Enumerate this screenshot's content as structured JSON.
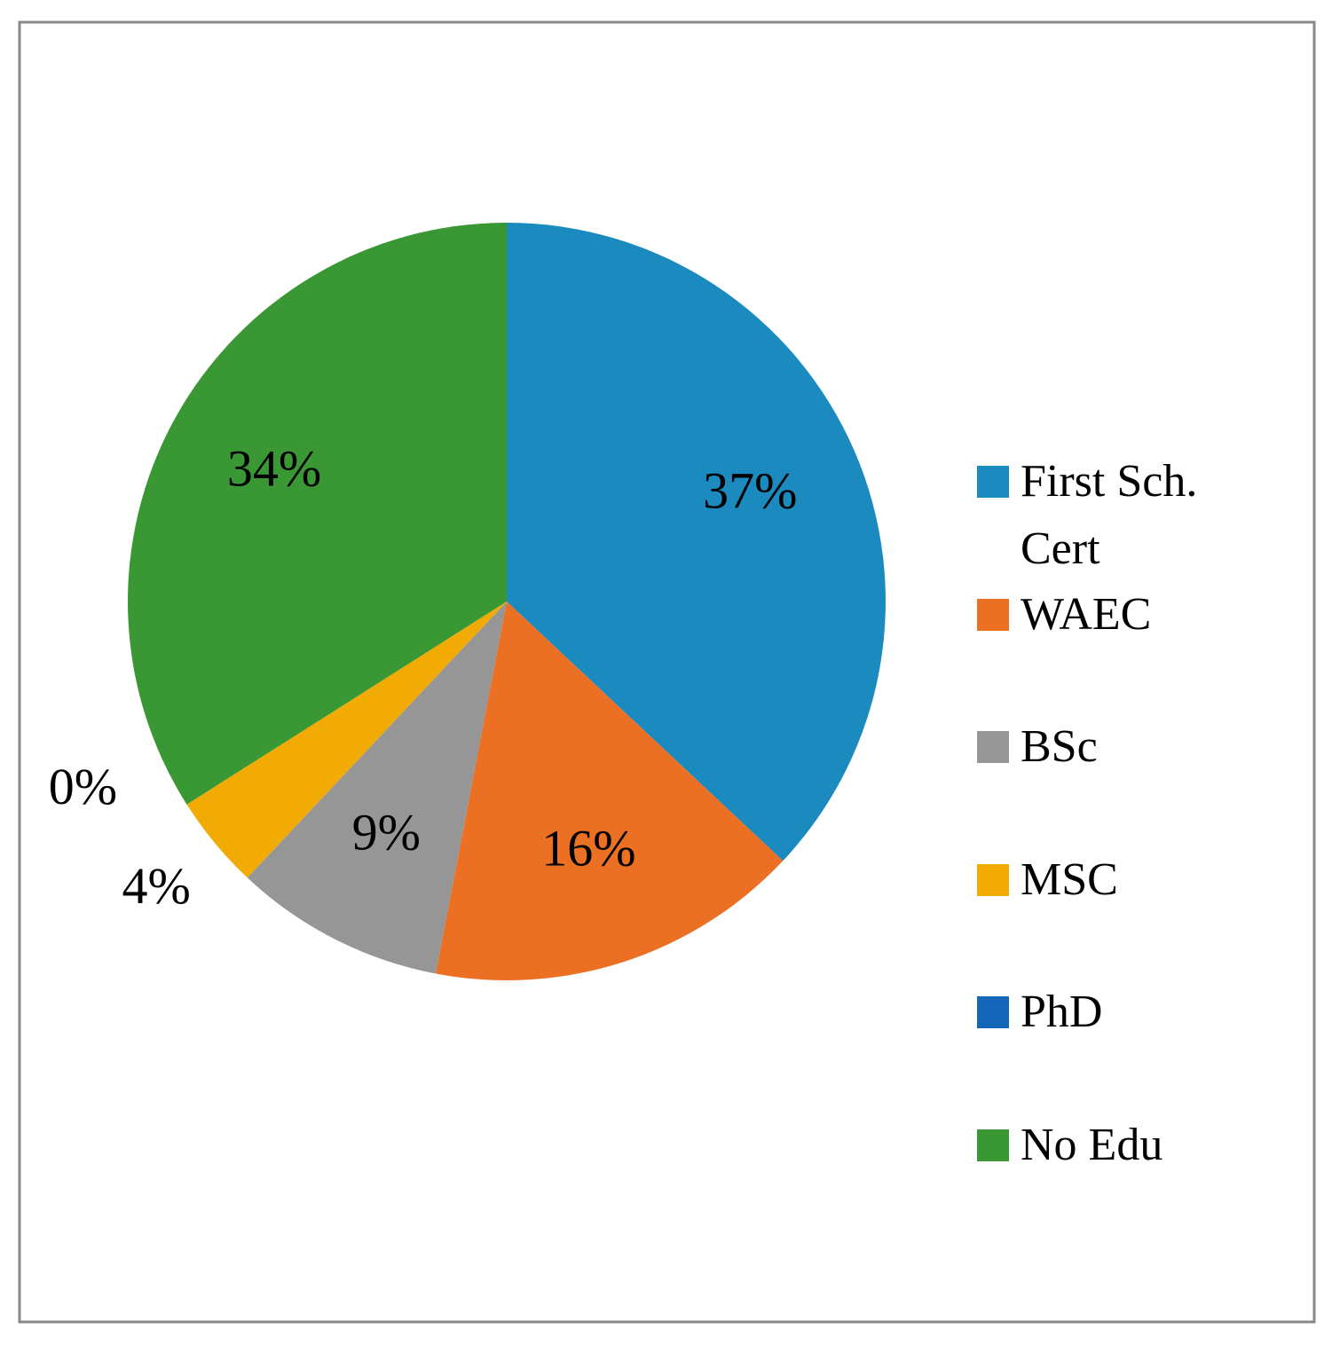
{
  "chart_data": {
    "type": "pie",
    "categories": [
      "First Sch. Cert",
      "WAEC",
      "BSc",
      "MSC",
      "PhD",
      "No Edu"
    ],
    "values": [
      37,
      16,
      9,
      4,
      0,
      34
    ],
    "value_labels": [
      "37%",
      "16%",
      "9%",
      "4%",
      "0%",
      "34%"
    ],
    "colors": [
      "#1a8abf",
      "#ec7023",
      "#969696",
      "#f2ab05",
      "#1565b9",
      "#3a9834"
    ],
    "legend": "right"
  }
}
